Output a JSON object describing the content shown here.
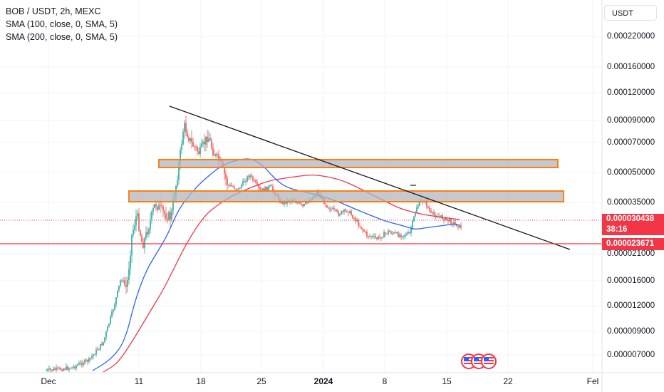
{
  "legend": {
    "symbol": "BOB / USDT, 2h, MEXC",
    "sma1": "SMA (100, close, 0, SMA, 5)",
    "sma2": "SMA (200, close, 0, SMA, 5)"
  },
  "currency_button": "USDT",
  "price_axis": [
    "0.000220000",
    "0.000160000",
    "0.000120000",
    "0.000090000",
    "0.000070000",
    "0.000050000",
    "0.000035000",
    "0.000021000",
    "0.000016000",
    "0.000012000",
    "0.000009000",
    "0.000007000"
  ],
  "time_axis": [
    "Dec",
    "11",
    "18",
    "25",
    "2024",
    "8",
    "15",
    "22",
    "Fel"
  ],
  "price_badges": {
    "current_price": "0.000030438",
    "countdown": "38:16",
    "horizontal_line_price": "0.000023671"
  },
  "colors": {
    "sma100": "#2962ff",
    "sma200": "#f23645",
    "up_candle": "#26a69a",
    "down_candle": "#ef5350",
    "zone_border": "#ff7f0e",
    "zone_fill": "#b2b5be",
    "trendline": "#131722",
    "price_line": "#f23645"
  },
  "icons": [
    "us-flag-icon",
    "us-flag-icon",
    "us-flag-icon"
  ]
}
